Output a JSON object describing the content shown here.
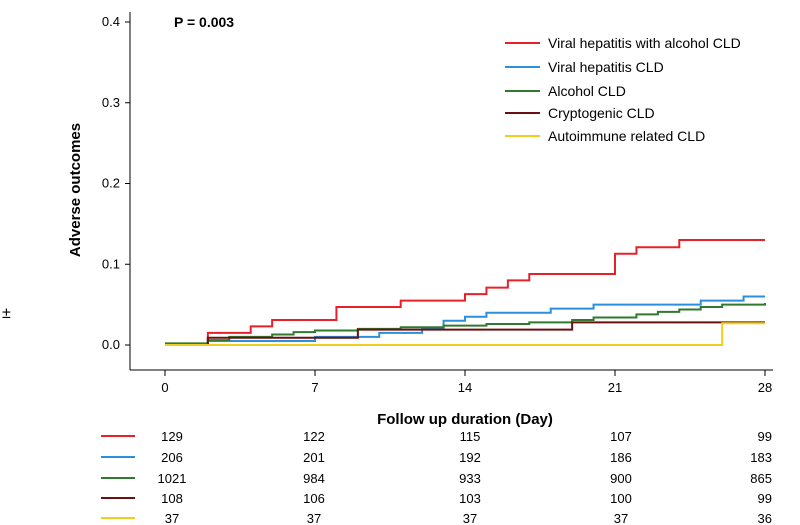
{
  "chart_data": {
    "type": "line",
    "title": "",
    "annotation": "P = 0.003",
    "side_mark": "±",
    "xlabel": "Follow up duration (Day)",
    "ylabel": "Adverse outcomes",
    "xlim": [
      0,
      28
    ],
    "ylim": [
      0,
      0.4
    ],
    "xticks": [
      0,
      7,
      14,
      21,
      28
    ],
    "xtick_labels": [
      "0",
      "7",
      "14",
      "21",
      "28"
    ],
    "yticks": [
      0,
      0.1,
      0.2,
      0.3,
      0.4
    ],
    "ytick_labels": [
      "0.0",
      "0.1",
      "0.2",
      "0.3",
      "0.4"
    ],
    "grid": false,
    "legend_position": "top-right",
    "series": [
      {
        "name": "Viral hepatitis with alcohol CLD",
        "color": "#e8202a",
        "steps": [
          [
            0,
            0
          ],
          [
            2,
            0.015
          ],
          [
            4,
            0.023
          ],
          [
            5,
            0.031
          ],
          [
            8,
            0.047
          ],
          [
            11,
            0.055
          ],
          [
            14,
            0.063
          ],
          [
            15,
            0.071
          ],
          [
            16,
            0.08
          ],
          [
            17,
            0.088
          ],
          [
            21,
            0.113
          ],
          [
            22,
            0.121
          ],
          [
            24,
            0.13
          ],
          [
            28,
            0.13
          ]
        ],
        "at_risk": [
          "129",
          "122",
          "115",
          "107",
          "99"
        ]
      },
      {
        "name": "Viral hepatitis CLD",
        "color": "#2a8fdc",
        "steps": [
          [
            0,
            0
          ],
          [
            2,
            0.005
          ],
          [
            5,
            0.005
          ],
          [
            7,
            0.01
          ],
          [
            9,
            0.01
          ],
          [
            10,
            0.015
          ],
          [
            12,
            0.02
          ],
          [
            13,
            0.03
          ],
          [
            14,
            0.035
          ],
          [
            15,
            0.04
          ],
          [
            18,
            0.045
          ],
          [
            20,
            0.05
          ],
          [
            25,
            0.055
          ],
          [
            27,
            0.06
          ],
          [
            28,
            0.06
          ]
        ],
        "at_risk": [
          "206",
          "201",
          "192",
          "186",
          "183"
        ]
      },
      {
        "name": "Alcohol CLD",
        "color": "#2e7a2e",
        "steps": [
          [
            0,
            0.002
          ],
          [
            2,
            0.006
          ],
          [
            3,
            0.01
          ],
          [
            5,
            0.013
          ],
          [
            6,
            0.016
          ],
          [
            7,
            0.018
          ],
          [
            9,
            0.02
          ],
          [
            11,
            0.022
          ],
          [
            13,
            0.024
          ],
          [
            15,
            0.026
          ],
          [
            17,
            0.028
          ],
          [
            19,
            0.031
          ],
          [
            20,
            0.034
          ],
          [
            22,
            0.038
          ],
          [
            23,
            0.041
          ],
          [
            24,
            0.044
          ],
          [
            25,
            0.047
          ],
          [
            26,
            0.05
          ],
          [
            28,
            0.052
          ]
        ],
        "at_risk": [
          "1021",
          "984",
          "933",
          "900",
          "865"
        ]
      },
      {
        "name": "Cryptogenic CLD",
        "color": "#6b1010",
        "steps": [
          [
            0,
            0
          ],
          [
            2,
            0.009
          ],
          [
            9,
            0.019
          ],
          [
            19,
            0.028
          ],
          [
            28,
            0.028
          ]
        ],
        "at_risk": [
          "108",
          "106",
          "103",
          "100",
          "99"
        ]
      },
      {
        "name": "Autoimmune related CLD",
        "color": "#f2cc1e",
        "steps": [
          [
            0,
            0
          ],
          [
            26,
            0
          ],
          [
            26,
            0.027
          ],
          [
            28,
            0.027
          ]
        ],
        "at_risk": [
          "37",
          "37",
          "37",
          "37",
          "36"
        ]
      }
    ]
  }
}
